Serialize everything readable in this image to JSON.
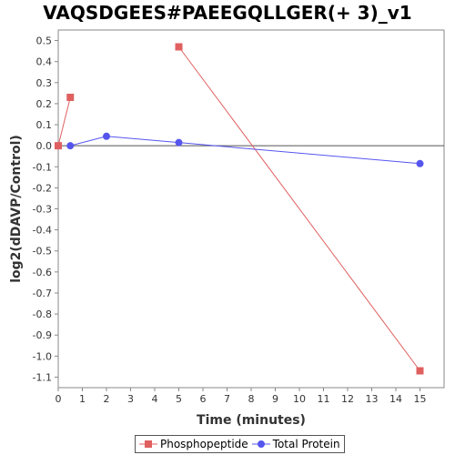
{
  "chart_data": {
    "type": "line",
    "title": "VAQSDGEES#PAEEGQLLGER(+ 3)_v1",
    "xlabel": "Time (minutes)",
    "ylabel": "log2(dDAVP/Control)",
    "xlim": [
      0,
      16
    ],
    "ylim": [
      -1.15,
      0.55
    ],
    "x_ticks": [
      0,
      1,
      2,
      3,
      4,
      5,
      6,
      7,
      8,
      9,
      10,
      11,
      12,
      13,
      14,
      15
    ],
    "y_ticks": [
      0.5,
      0.4,
      0.3,
      0.2,
      0.1,
      0.0,
      -0.1,
      -0.2,
      -0.3,
      -0.4,
      -0.5,
      -0.6,
      -0.7,
      -0.8,
      -0.9,
      -1.0,
      -1.1
    ],
    "grid": false,
    "legend_position": "bottom",
    "series": [
      {
        "name": "Phosphopeptide",
        "color": "#e06060",
        "marker": "square",
        "x": [
          0,
          0.5
        ],
        "y": [
          0.0,
          0.23
        ]
      },
      {
        "name": "Phosphopeptide",
        "color": "#e06060",
        "marker": "square",
        "x": [
          5,
          15
        ],
        "y": [
          0.47,
          -1.07
        ]
      },
      {
        "name": "Total Protein",
        "color": "#5555ee",
        "marker": "circle",
        "x": [
          0.5,
          2,
          5,
          15
        ],
        "y": [
          0.0,
          0.045,
          0.015,
          -0.085
        ]
      }
    ],
    "legend": [
      {
        "label": "Phosphopeptide",
        "color": "#e06060",
        "marker": "square"
      },
      {
        "label": "Total Protein",
        "color": "#5555ee",
        "marker": "circle"
      }
    ]
  }
}
